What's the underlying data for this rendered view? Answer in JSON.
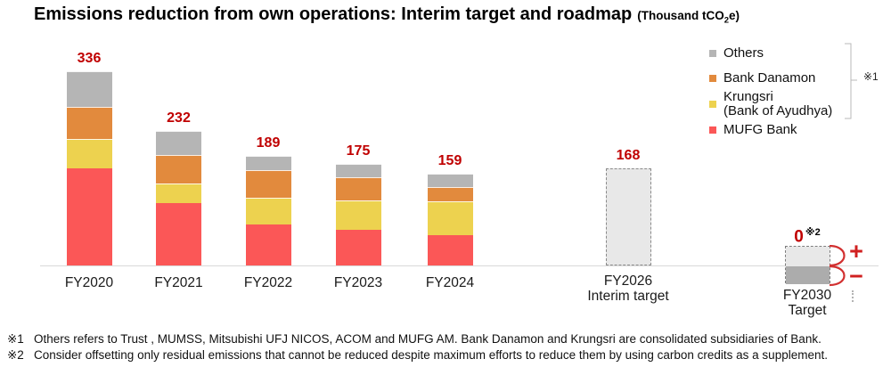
{
  "chart_data": {
    "type": "bar",
    "stacked": true,
    "title": "Emissions reduction from own operations: Interim target and roadmap",
    "unit_label": {
      "prefix": "(Thousand tCO",
      "sub": "2",
      "suffix": "e)"
    },
    "ylabel": "",
    "xlabel": "",
    "ylim": [
      0,
      360
    ],
    "grid": false,
    "value_label_color": "#C00000",
    "series": [
      {
        "name": "MUFG Bank",
        "color": "#FB5757"
      },
      {
        "name": "Krungsri (Bank of Ayudhya)",
        "color": "#EDD24F"
      },
      {
        "name": "Bank Danamon",
        "color": "#E28A3D"
      },
      {
        "name": "Others",
        "color": "#B5B5B5"
      }
    ],
    "bars": [
      {
        "label_lines": [
          "FY2020"
        ],
        "total": 336,
        "values": [
          168,
          51,
          55,
          62
        ]
      },
      {
        "label_lines": [
          "FY2021"
        ],
        "total": 232,
        "values": [
          108,
          33,
          50,
          41
        ]
      },
      {
        "label_lines": [
          "FY2022"
        ],
        "total": 189,
        "values": [
          70,
          47,
          47,
          25
        ]
      },
      {
        "label_lines": [
          "FY2023"
        ],
        "total": 175,
        "values": [
          62,
          50,
          41,
          22
        ]
      },
      {
        "label_lines": [
          "FY2024"
        ],
        "total": 159,
        "values": [
          53,
          57,
          26,
          23
        ]
      },
      {
        "label_lines": [
          "FY2026",
          "Interim target"
        ],
        "total": 168,
        "kind": "target",
        "fill": "#E8E8E8"
      },
      {
        "label_lines": [
          "FY2030",
          "Target"
        ],
        "total": 0,
        "kind": "offset_target",
        "note": "※2",
        "offset_above": 34,
        "offset_below": 31,
        "fill_above": "#E8E8E8",
        "fill_below": "#ACACAC"
      }
    ]
  },
  "legend": {
    "note_ref": "※1",
    "items": [
      {
        "lines": [
          "Others"
        ],
        "color": "#B5B5B5"
      },
      {
        "lines": [
          "Bank Danamon"
        ],
        "color": "#E28A3D"
      },
      {
        "lines": [
          "Krungsri",
          "(Bank of Ayudhya)"
        ],
        "color": "#EDD24F"
      },
      {
        "lines": [
          "MUFG Bank"
        ],
        "color": "#FB5757"
      }
    ]
  },
  "annotations": {
    "plus": "+",
    "minus": "−"
  },
  "footnotes": [
    {
      "marker": "※1",
      "text": "Others refers to Trust , MUMSS, Mitsubishi UFJ NICOS, ACOM and MUFG AM. Bank Danamon and Krungsri are consolidated subsidiaries of Bank."
    },
    {
      "marker": "※2",
      "text": "Consider offsetting only residual emissions that cannot be reduced despite maximum efforts to reduce them by using carbon credits as a supplement."
    }
  ]
}
